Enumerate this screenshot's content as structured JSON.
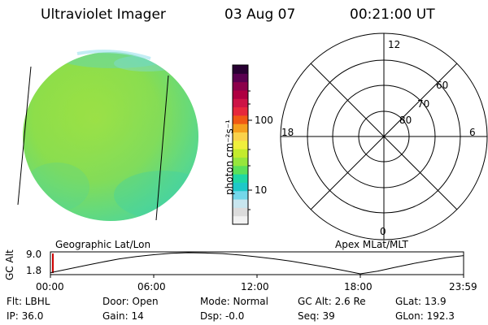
{
  "header": {
    "instrument": "Ultraviolet Imager",
    "date": "03 Aug 07",
    "time": "00:21:00 UT"
  },
  "colorbar": {
    "label": "photon cm⁻²s⁻¹",
    "scale": "log",
    "ticks": [
      {
        "value": 100,
        "label": "100"
      },
      {
        "value": 10,
        "label": "10"
      }
    ],
    "colors": [
      "#f2f2f2",
      "#dcdcdc",
      "#c8e6ef",
      "#73d7ea",
      "#1ec8c8",
      "#1ed7a5",
      "#5ae05a",
      "#96e63c",
      "#c3eb2d",
      "#f0f03c",
      "#fad24b",
      "#f5a01e",
      "#f05a14",
      "#e6283c",
      "#cd1446",
      "#af0041",
      "#8c004b",
      "#5a0050",
      "#280032"
    ]
  },
  "polar_plot": {
    "labels": {
      "top": "12",
      "left": "18",
      "right": "6",
      "bottom": "0"
    },
    "rings": [
      "60",
      "70",
      "80"
    ]
  },
  "timeline": {
    "left_label": "Geographic Lat/Lon",
    "right_label": "Apex MLat/MLT",
    "axis_title": "GC Alt",
    "y_top": "9.0",
    "y_bottom": "1.8",
    "x_ticks": [
      "00:00",
      "06:00",
      "12:00",
      "18:00",
      "23:59"
    ],
    "altitude_curve": {
      "units": "Re",
      "x_hours": [
        0,
        1,
        2,
        3,
        4,
        5,
        6,
        7,
        8,
        9,
        10,
        11,
        12,
        13,
        14,
        15,
        16,
        17,
        18,
        19,
        20,
        21,
        22,
        23,
        24
      ],
      "y": [
        2.2,
        3.4,
        4.6,
        5.8,
        6.9,
        7.7,
        8.3,
        8.8,
        9.0,
        8.9,
        8.7,
        8.2,
        7.6,
        6.9,
        6.1,
        5.1,
        4.1,
        3.0,
        1.8,
        2.7,
        4.0,
        5.2,
        6.3,
        7.3,
        8.0
      ]
    }
  },
  "info": {
    "row1": [
      {
        "key": "flt",
        "text": "Flt: LBHL"
      },
      {
        "key": "door",
        "text": "Door: Open"
      },
      {
        "key": "mode",
        "text": "Mode: Normal"
      },
      {
        "key": "gcalt",
        "text": "GC Alt: 2.6 Re"
      },
      {
        "key": "glat",
        "text": "GLat:  13.9"
      }
    ],
    "row2": [
      {
        "key": "ip",
        "text": "IP: 36.0"
      },
      {
        "key": "gain",
        "text": "Gain: 14"
      },
      {
        "key": "dsp",
        "text": "Dsp:   -0.0"
      },
      {
        "key": "seq",
        "text": "Seq: 39"
      },
      {
        "key": "glon",
        "text": "GLon: 192.3"
      }
    ]
  }
}
